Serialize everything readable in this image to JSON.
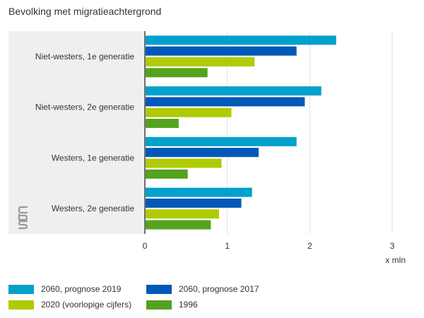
{
  "chart_data": {
    "type": "bar",
    "orientation": "horizontal",
    "title": "Bevolking met migratieachtergrond",
    "xlabel": "x mln",
    "ylabel": "",
    "xlim": [
      0,
      3
    ],
    "xticks": [
      0,
      1,
      2,
      3
    ],
    "grid": true,
    "legend_position": "bottom",
    "categories": [
      "Niet-westers, 1e generatie",
      "Niet-westers, 2e generatie",
      "Westers, 1e generatie",
      "Westers, 2e generatie"
    ],
    "series": [
      {
        "name": "2060, prognose 2019",
        "color": "#00a1cd",
        "values": [
          2.32,
          2.14,
          1.84,
          1.3
        ]
      },
      {
        "name": "2060, prognose 2017",
        "color": "#0058b8",
        "values": [
          1.84,
          1.94,
          1.38,
          1.17
        ]
      },
      {
        "name": "2020 (voorlopige cijfers)",
        "color": "#afcb05",
        "values": [
          1.33,
          1.05,
          0.93,
          0.9
        ]
      },
      {
        "name": "1996",
        "color": "#53a31d",
        "values": [
          0.76,
          0.41,
          0.52,
          0.8
        ]
      }
    ]
  },
  "logo": {
    "name": "cbs-logo",
    "text": "cbs"
  }
}
